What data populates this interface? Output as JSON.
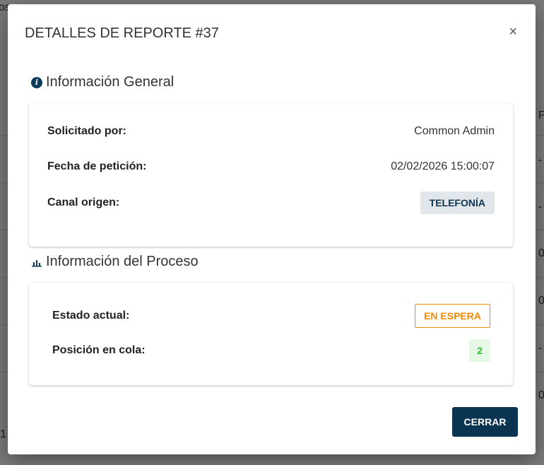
{
  "background": {
    "fragments": [
      "os",
      "F",
      "-",
      "-",
      "0",
      "0",
      "-",
      "0",
      "1"
    ]
  },
  "modal": {
    "title": "DETALLES DE REPORTE #37",
    "close_label": "×",
    "general": {
      "heading": "Información General",
      "icon": "info-circle-icon",
      "rows": [
        {
          "label": "Solicitado por:",
          "value": "Common Admin"
        },
        {
          "label": "Fecha de petición:",
          "value": "02/02/2026 15:00:07"
        },
        {
          "label": "Canal origen:",
          "value": "TELEFONÍA"
        }
      ]
    },
    "process": {
      "heading": "Información del Proceso",
      "icon": "bar-chart-icon",
      "rows": [
        {
          "label": "Estado actual:",
          "value": "EN ESPERA"
        },
        {
          "label": "Posición en cola:",
          "value": "2"
        }
      ]
    },
    "close_button": "CERRAR"
  },
  "colors": {
    "primary": "#0b3450",
    "warning": "#f08c00",
    "success": "#2db82d"
  }
}
